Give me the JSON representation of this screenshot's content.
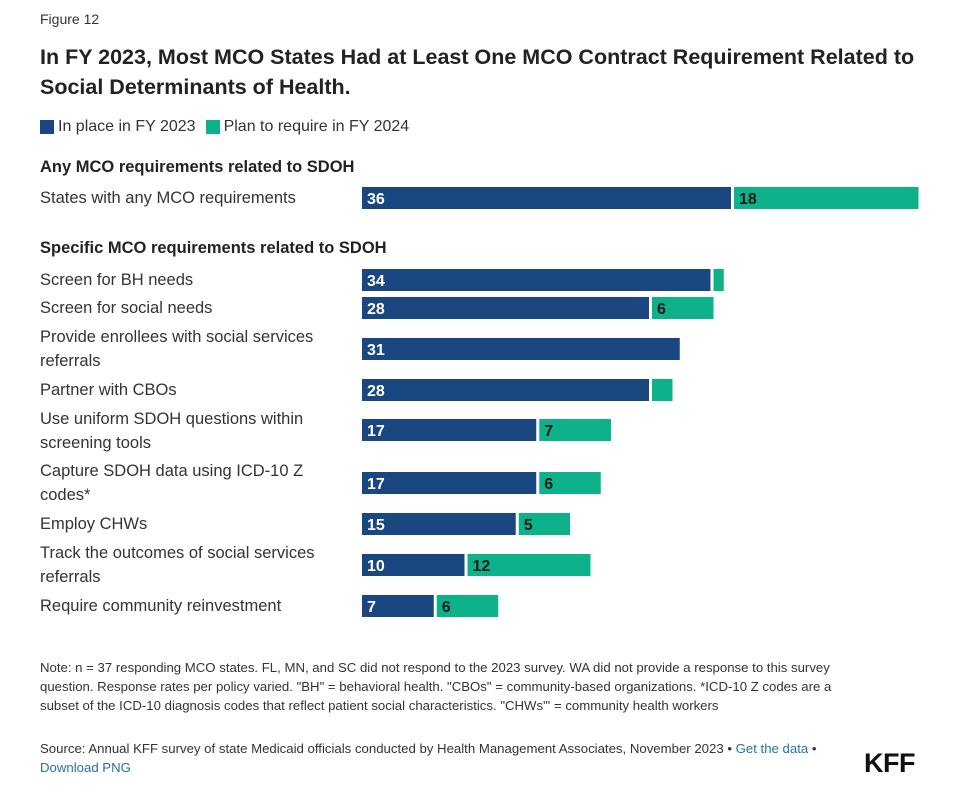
{
  "figure_label": "Figure 12",
  "title": "In FY 2023, Most MCO States Had at Least One MCO Contract Requirement Related to Social Determinants of Health.",
  "colors": {
    "inplace": "#1a477f",
    "plan": "#0db18a"
  },
  "legend": {
    "inplace": "In place in FY 2023",
    "plan": "Plan to require in FY 2024"
  },
  "sections": {
    "any": "Any MCO requirements related to SDOH",
    "specific": "Specific MCO requirements related to SDOH"
  },
  "chart_data": {
    "type": "bar",
    "orientation": "horizontal",
    "stacked": true,
    "categories": [
      "States with any MCO requirements",
      "Screen for BH needs",
      "Screen for social needs",
      "Provide enrollees with social services referrals",
      "Partner with CBOs",
      "Use uniform SDOH questions within screening tools",
      "Capture SDOH data using ICD-10 Z codes*",
      "Employ CHWs",
      "Track the outcomes of social services referrals",
      "Require community reinvestment"
    ],
    "series": [
      {
        "name": "In place in FY 2023",
        "values": [
          36,
          34,
          28,
          31,
          28,
          17,
          17,
          15,
          10,
          7
        ]
      },
      {
        "name": "Plan to require in FY 2024",
        "values": [
          18,
          1,
          6,
          0,
          2,
          7,
          6,
          5,
          12,
          6
        ]
      }
    ],
    "data_labels": {
      "inplace": [
        "36",
        "34",
        "28",
        "31",
        "28",
        "17",
        "17",
        "15",
        "10",
        "7"
      ],
      "plan": [
        "18",
        "",
        "6",
        "",
        "",
        "7",
        "6",
        "5",
        "12",
        "6"
      ]
    },
    "xlim": [
      0,
      54
    ],
    "grid": false,
    "legend_position": "top-left"
  },
  "note": "Note: n = 37 responding MCO states. FL, MN, and SC did not respond to the 2023 survey. WA did not provide a response to this survey question. Response rates per policy varied. \"BH\" = behavioral health. \"CBOs\" = community-based organizations. *ICD-10 Z codes are a subset of the ICD-10 diagnosis codes that reflect patient social characteristics. \"CHWs\"' = community health workers",
  "source": {
    "text": "Source: Annual KFF survey of state Medicaid officials conducted by Health Management Associates, November 2023 • ",
    "get_data": "Get the data",
    "separator": " • ",
    "download": "Download PNG"
  },
  "logo": "KFF"
}
